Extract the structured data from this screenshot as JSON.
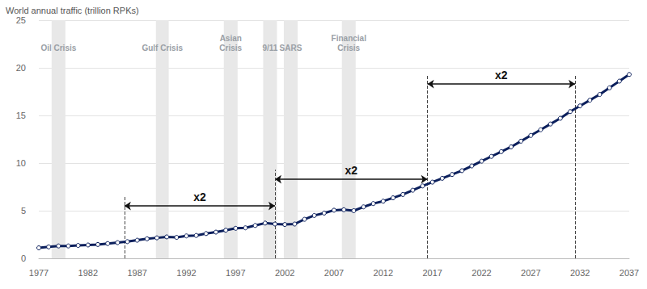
{
  "chart_data": {
    "type": "line",
    "title": "World annual traffic (trillion RPKs)",
    "x": [
      1977,
      1978,
      1979,
      1980,
      1981,
      1982,
      1983,
      1984,
      1985,
      1986,
      1987,
      1988,
      1989,
      1990,
      1991,
      1992,
      1993,
      1994,
      1995,
      1996,
      1997,
      1998,
      1999,
      2000,
      2001,
      2002,
      2003,
      2004,
      2005,
      2006,
      2007,
      2008,
      2009,
      2010,
      2011,
      2012,
      2013,
      2014,
      2015,
      2016,
      2017,
      2018,
      2019,
      2020,
      2021,
      2022,
      2023,
      2024,
      2025,
      2026,
      2027,
      2028,
      2029,
      2030,
      2031,
      2032,
      2033,
      2034,
      2035,
      2036,
      2037
    ],
    "values": [
      1.1,
      1.2,
      1.3,
      1.3,
      1.35,
      1.4,
      1.45,
      1.55,
      1.65,
      1.75,
      1.9,
      2.05,
      2.15,
      2.25,
      2.2,
      2.35,
      2.4,
      2.6,
      2.75,
      2.95,
      3.15,
      3.2,
      3.45,
      3.7,
      3.6,
      3.55,
      3.6,
      4.1,
      4.5,
      4.75,
      5.05,
      5.1,
      5.0,
      5.4,
      5.75,
      6.0,
      6.35,
      6.7,
      7.15,
      7.6,
      8.0,
      8.4,
      8.8,
      9.2,
      9.7,
      10.2,
      10.7,
      11.2,
      11.7,
      12.3,
      12.9,
      13.5,
      14.1,
      14.7,
      15.4,
      16.0,
      16.6,
      17.2,
      17.9,
      18.6,
      19.3
    ],
    "color": "#0b1f5c",
    "marker": "circle",
    "xlim": [
      1977,
      2037
    ],
    "xticks": [
      1977,
      1982,
      1987,
      1992,
      1997,
      2002,
      2007,
      2012,
      2017,
      2022,
      2027,
      2032,
      2037
    ],
    "ylim": [
      0,
      25
    ],
    "yticks": [
      0,
      5,
      10,
      15,
      20,
      25
    ],
    "grid": true,
    "bands": [
      {
        "label": "Oil Crisis",
        "start": 1978.3,
        "end": 1979.7
      },
      {
        "label": "Gulf Crisis",
        "start": 1988.9,
        "end": 1990.2
      },
      {
        "label": "Asian\nCrisis",
        "start": 1995.8,
        "end": 1997.2
      },
      {
        "label": "9/11",
        "start": 1999.8,
        "end": 2001.2
      },
      {
        "label": "SARS",
        "start": 2001.9,
        "end": 2003.3
      },
      {
        "label": "Financial\nCrisis",
        "start": 2007.8,
        "end": 2009.2
      }
    ],
    "arrows": [
      {
        "label": "x2",
        "from": 1985.7,
        "to": 2001.0,
        "y": 5.5
      },
      {
        "label": "x2",
        "from": 2001.0,
        "to": 2016.5,
        "y": 8.3
      },
      {
        "label": "x2",
        "from": 2016.5,
        "to": 2031.5,
        "y": 18.3
      }
    ]
  }
}
